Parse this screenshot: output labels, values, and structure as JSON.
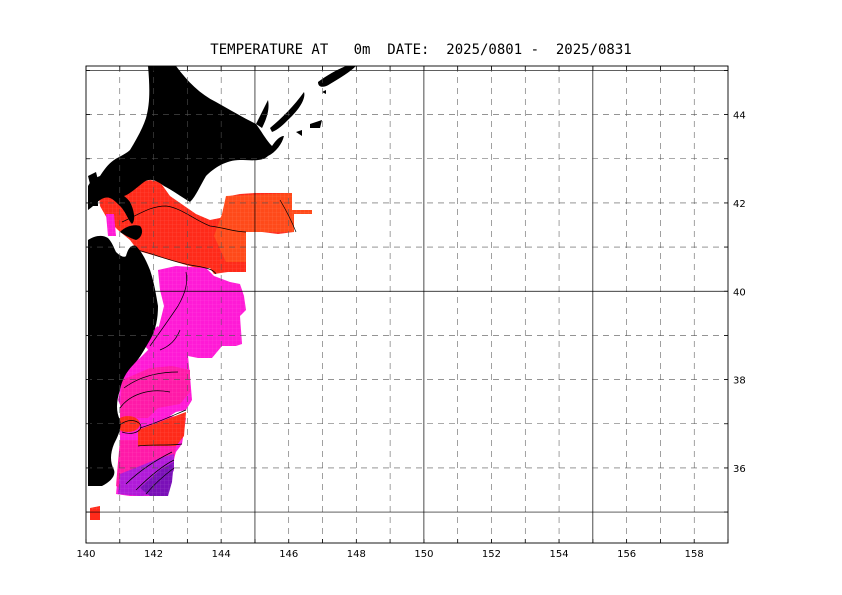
{
  "title": "TEMPERATURE AT   0m  DATE:  2025/0801 -  2025/0831",
  "axes": {
    "lon_labels": [
      "140",
      "142",
      "144",
      "146",
      "148",
      "150",
      "152",
      "154",
      "156",
      "158"
    ],
    "lat_labels": [
      "44",
      "42",
      "40",
      "38",
      "36"
    ]
  },
  "map": {
    "lon_range": [
      140,
      159
    ],
    "lat_range": [
      34.3,
      45.1
    ],
    "grid": "dashed every 1 degree, solid every 5 degrees",
    "land_color": "#000000",
    "temperature_colors": {
      "warm_red": "#ff2a1a",
      "orange_red": "#ff4a1a",
      "magenta": "#ff1ad6",
      "hot_pink": "#ff1aa8",
      "purple": "#b01ad8",
      "deep_purple": "#7a10b8"
    }
  }
}
